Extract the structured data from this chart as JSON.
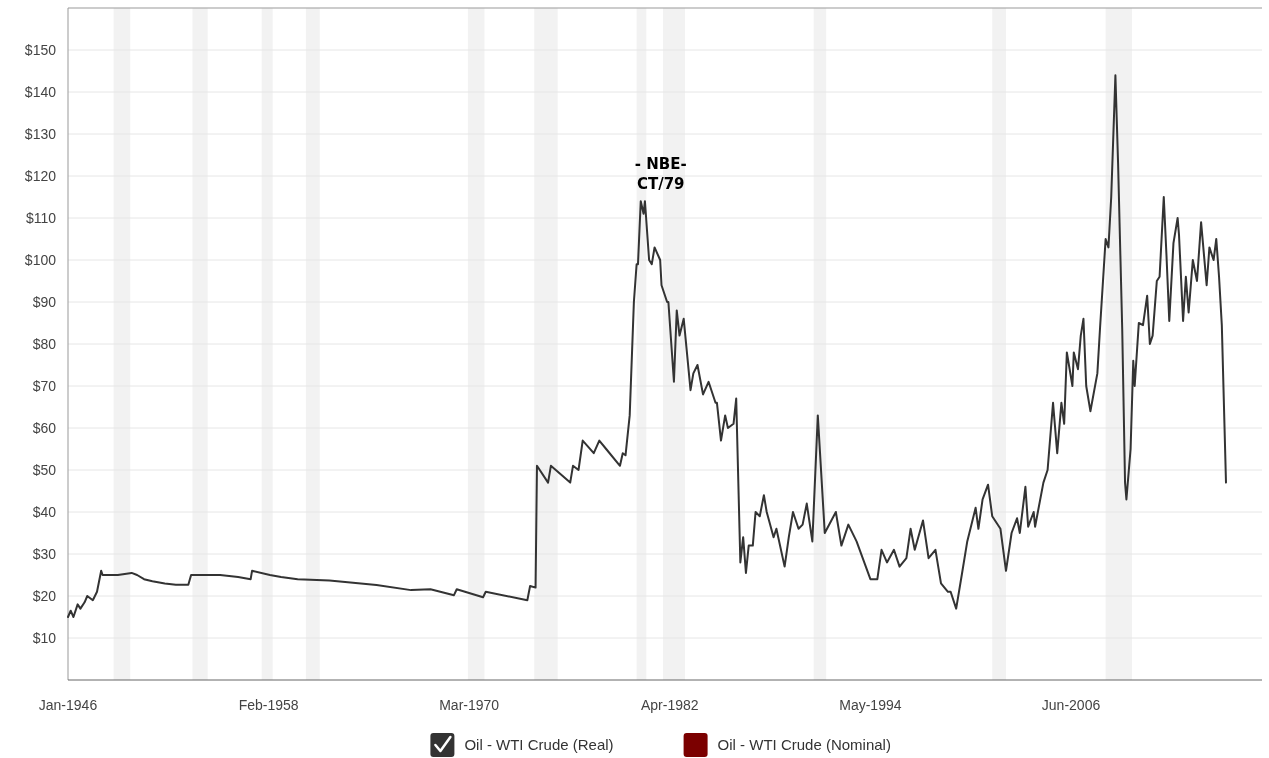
{
  "chart_data": {
    "type": "line",
    "x": [
      "1946-01",
      "1946-03",
      "1946-05",
      "1946-08",
      "1946-10",
      "1947-01",
      "1947-03",
      "1947-07",
      "1947-10",
      "1948-01",
      "1948-02",
      "1948-07",
      "1949-01",
      "1949-11",
      "1950-03",
      "1950-08",
      "1951-02",
      "1951-11",
      "1952-07",
      "1953-04",
      "1953-06",
      "1954-09",
      "1955-03",
      "1956-04",
      "1957-01",
      "1957-02",
      "1958-03",
      "1958-11",
      "1959-11",
      "1961-10",
      "1964-08",
      "1966-09",
      "1967-11",
      "1969-04",
      "1969-06",
      "1971-01",
      "1971-03",
      "1973-09",
      "1973-11",
      "1974-03",
      "1974-04",
      "1974-12",
      "1975-02",
      "1976-04",
      "1976-06",
      "1976-10",
      "1977-01",
      "1977-09",
      "1978-01",
      "1978-06",
      "1979-04",
      "1979-06",
      "1979-08",
      "1979-11",
      "1980-02",
      "1980-04",
      "1980-05",
      "1980-07",
      "1980-09",
      "1980-10",
      "1981-01",
      "1981-03",
      "1981-05",
      "1981-09",
      "1981-10",
      "1982-02",
      "1982-03",
      "1982-07",
      "1982-09",
      "1982-11",
      "1983-02",
      "1983-07",
      "1983-09",
      "1983-12",
      "1984-04",
      "1984-08",
      "1985-01",
      "1985-02",
      "1985-05",
      "1985-08",
      "1985-10",
      "1986-02",
      "1986-04",
      "1986-07",
      "1986-09",
      "1986-11",
      "1987-01",
      "1987-04",
      "1987-06",
      "1987-09",
      "1987-12",
      "1988-02",
      "1988-07",
      "1988-09",
      "1989-03",
      "1989-06",
      "1989-09",
      "1990-01",
      "1990-04",
      "1990-07",
      "1990-11",
      "1991-03",
      "1991-08",
      "1992-04",
      "1992-08",
      "1993-01",
      "1993-07",
      "1994-05",
      "1994-10",
      "1995-01",
      "1995-05",
      "1995-10",
      "1996-02",
      "1996-07",
      "1996-10",
      "1997-01",
      "1997-07",
      "1997-11",
      "1998-04",
      "1998-08",
      "1999-01",
      "1999-03",
      "1999-07",
      "1999-11",
      "2000-03",
      "2000-09",
      "2000-11",
      "2001-02",
      "2001-06",
      "2001-09",
      "2002-03",
      "2002-07",
      "2002-11",
      "2003-03",
      "2003-05",
      "2003-09",
      "2003-11",
      "2004-03",
      "2004-04",
      "2004-10",
      "2005-01",
      "2005-05",
      "2005-08",
      "2005-11",
      "2006-01",
      "2006-03",
      "2006-07",
      "2006-08",
      "2006-11",
      "2007-01",
      "2007-03",
      "2007-05",
      "2007-08",
      "2008-01",
      "2008-03",
      "2008-07",
      "2008-09",
      "2008-11",
      "2009-02",
      "2009-04",
      "2009-07",
      "2009-09",
      "2009-10",
      "2010-01",
      "2010-03",
      "2010-04",
      "2010-07",
      "2010-10",
      "2011-01",
      "2011-03",
      "2011-05",
      "2011-08",
      "2011-10",
      "2012-01",
      "2012-03",
      "2012-05",
      "2012-08",
      "2012-11",
      "2012-12",
      "2013-03",
      "2013-05",
      "2013-07",
      "2013-10",
      "2014-01",
      "2014-04",
      "2014-08",
      "2014-10",
      "2015-01",
      "2015-03",
      "2015-05",
      "2015-07",
      "2015-10"
    ],
    "series": [
      {
        "name": "Oil - WTI Crude (Real)",
        "color": "#333333",
        "values": [
          15,
          16.5,
          15,
          18,
          17,
          18.5,
          20,
          19,
          21,
          26,
          25,
          25,
          25,
          25.5,
          25,
          24,
          23.5,
          23,
          22.7,
          22.7,
          25,
          25,
          25,
          24.5,
          24,
          26,
          25,
          24.5,
          24,
          23.7,
          22.6,
          21.4,
          21.6,
          20.2,
          21.6,
          19.7,
          21,
          19,
          22.4,
          22,
          51,
          47,
          51,
          47,
          51,
          50,
          57,
          54,
          57,
          55,
          51,
          54,
          53.5,
          63,
          90,
          99,
          99,
          114,
          111,
          114,
          100,
          99,
          103,
          100,
          94,
          90,
          90,
          71,
          88,
          82,
          86,
          69,
          73,
          75,
          68,
          71,
          66,
          66,
          57,
          63,
          60,
          61,
          67,
          28,
          34,
          25.5,
          32,
          32,
          40,
          39,
          44,
          40,
          34,
          36,
          27,
          34,
          40,
          36,
          37,
          42,
          33,
          63,
          35,
          40,
          32,
          37,
          33,
          24,
          24,
          31,
          28,
          31,
          27,
          29,
          36,
          31,
          38,
          29,
          31,
          23,
          21,
          21,
          17,
          25,
          33,
          41,
          36,
          43,
          46.5,
          39,
          36,
          26,
          35,
          38.5,
          35,
          46,
          36.5,
          40,
          36.5,
          47,
          50,
          66,
          54,
          66,
          61,
          78,
          70,
          78,
          74,
          82,
          86,
          70,
          64,
          73,
          84,
          105,
          103,
          115,
          144,
          123,
          83.5,
          47,
          43,
          55,
          76,
          70,
          85,
          84.5,
          91.5,
          80,
          82,
          95,
          96,
          115,
          101,
          85.5,
          104,
          110,
          106,
          85.5,
          96,
          87.5,
          100,
          95,
          109,
          94,
          103,
          100,
          105,
          96,
          84.5,
          47
        ]
      }
    ],
    "xlim": [
      "1946-01",
      "2017-12"
    ],
    "xticks": [
      {
        "value": "1946-01",
        "label": "Jan-1946"
      },
      {
        "value": "1958-02",
        "label": "Feb-1958"
      },
      {
        "value": "1970-03",
        "label": "Mar-1970"
      },
      {
        "value": "1982-04",
        "label": "Apr-1982"
      },
      {
        "value": "1994-05",
        "label": "May-1994"
      },
      {
        "value": "2006-06",
        "label": "Jun-2006"
      }
    ],
    "ylim": [
      0,
      160
    ],
    "yticks": [
      {
        "value": 10,
        "label": "$10"
      },
      {
        "value": 20,
        "label": "$20"
      },
      {
        "value": 30,
        "label": "$30"
      },
      {
        "value": 40,
        "label": "$40"
      },
      {
        "value": 50,
        "label": "$50"
      },
      {
        "value": 60,
        "label": "$60"
      },
      {
        "value": 70,
        "label": "$70"
      },
      {
        "value": 80,
        "label": "$80"
      },
      {
        "value": 90,
        "label": "$90"
      },
      {
        "value": 100,
        "label": "$100"
      },
      {
        "value": 110,
        "label": "$110"
      },
      {
        "value": 120,
        "label": "$120"
      },
      {
        "value": 130,
        "label": "$130"
      },
      {
        "value": 140,
        "label": "$140"
      },
      {
        "value": 150,
        "label": "$150"
      }
    ],
    "bands": [
      {
        "axis": "x",
        "from": "1948-10",
        "to": "1949-10",
        "color": "#f2f2f2"
      },
      {
        "axis": "x",
        "from": "1953-07",
        "to": "1954-06",
        "color": "#f2f2f2"
      },
      {
        "axis": "x",
        "from": "1957-09",
        "to": "1958-05",
        "color": "#f2f2f2"
      },
      {
        "axis": "x",
        "from": "1960-05",
        "to": "1961-03",
        "color": "#f2f2f2"
      },
      {
        "axis": "x",
        "from": "1970-02",
        "to": "1971-02",
        "color": "#f2f2f2"
      },
      {
        "axis": "x",
        "from": "1974-02",
        "to": "1975-07",
        "color": "#f2f2f2"
      },
      {
        "axis": "x",
        "from": "1980-04",
        "to": "1980-11",
        "color": "#f2f2f2"
      },
      {
        "axis": "x",
        "from": "1981-11",
        "to": "1983-03",
        "color": "#f2f2f2"
      },
      {
        "axis": "x",
        "from": "1990-12",
        "to": "1991-09",
        "color": "#f2f2f2"
      },
      {
        "axis": "x",
        "from": "2001-09",
        "to": "2002-07",
        "color": "#f2f2f2"
      },
      {
        "axis": "x",
        "from": "2008-07",
        "to": "2010-02",
        "color": "#f2f2f2"
      }
    ],
    "annotations": [
      {
        "text": "- NBE- CT/79",
        "x": "1980-07",
        "y": 114
      },
      "Oil - WTI Crude (Nominal)"
    ],
    "grid": "y",
    "legend": "bottom",
    "marker": "none",
    "line_style": "solid"
  }
}
